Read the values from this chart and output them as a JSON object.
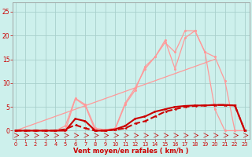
{
  "bg_color": "#cdf0ec",
  "grid_color": "#a8d0cc",
  "x_label": "Vent moyen/en rafales ( km/h )",
  "x_ticks": [
    0,
    1,
    2,
    3,
    4,
    5,
    6,
    7,
    8,
    9,
    10,
    11,
    12,
    13,
    14,
    15,
    16,
    17,
    18,
    19,
    20,
    21,
    22,
    23
  ],
  "y_ticks": [
    0,
    5,
    10,
    15,
    20,
    25
  ],
  "ylim": [
    -1.8,
    27
  ],
  "xlim": [
    -0.3,
    23.5
  ],
  "color_dark": "#cc0000",
  "color_light": "#ff9999",
  "line_trend_x": [
    0,
    20
  ],
  "line_trend_y": [
    0,
    15.0
  ],
  "line_light1_x": [
    0,
    1,
    2,
    3,
    4,
    5,
    6,
    7,
    8,
    9,
    10,
    11,
    12,
    13,
    14,
    15,
    16,
    17,
    18,
    19,
    20,
    21,
    22,
    23
  ],
  "line_light1_y": [
    0,
    0,
    0,
    0,
    0,
    0,
    6.7,
    5.2,
    0,
    0,
    0.3,
    5.5,
    8.5,
    13.5,
    15.5,
    18.5,
    16.5,
    21.0,
    21.0,
    16.5,
    15.5,
    10.5,
    0,
    0
  ],
  "line_light2_x": [
    0,
    1,
    2,
    3,
    4,
    5,
    6,
    7,
    8,
    9,
    10,
    11,
    12,
    13,
    14,
    15,
    16,
    17,
    18,
    19,
    20,
    21,
    22,
    23
  ],
  "line_light2_y": [
    0,
    0,
    0,
    0,
    0,
    1.0,
    6.8,
    5.5,
    0.5,
    0.2,
    0.5,
    5.8,
    9.0,
    13.0,
    15.5,
    19.0,
    13.0,
    19.5,
    21.0,
    16.5,
    4.5,
    0,
    0,
    0
  ],
  "line_dark1_x": [
    0,
    1,
    2,
    3,
    4,
    5,
    6,
    7,
    8,
    9,
    10,
    11,
    12,
    13,
    14,
    15,
    16,
    17,
    18,
    19,
    20,
    21,
    22,
    23
  ],
  "line_dark1_y": [
    0,
    0,
    0,
    0,
    0,
    0,
    2.5,
    2.0,
    0,
    0,
    0.3,
    1.0,
    2.5,
    3.0,
    4.0,
    4.5,
    5.0,
    5.2,
    5.3,
    5.3,
    5.4,
    5.4,
    5.3,
    0
  ],
  "line_dark2_x": [
    0,
    1,
    2,
    3,
    4,
    5,
    6,
    7,
    8,
    9,
    10,
    11,
    12,
    13,
    14,
    15,
    16,
    17,
    18,
    19,
    20,
    21,
    22,
    23
  ],
  "line_dark2_y": [
    0,
    0,
    0,
    0,
    0,
    0.3,
    1.2,
    0.5,
    0,
    0,
    0.2,
    0.5,
    1.5,
    2.0,
    3.0,
    4.0,
    4.5,
    5.0,
    5.2,
    5.3,
    5.4,
    5.4,
    5.3,
    0
  ]
}
